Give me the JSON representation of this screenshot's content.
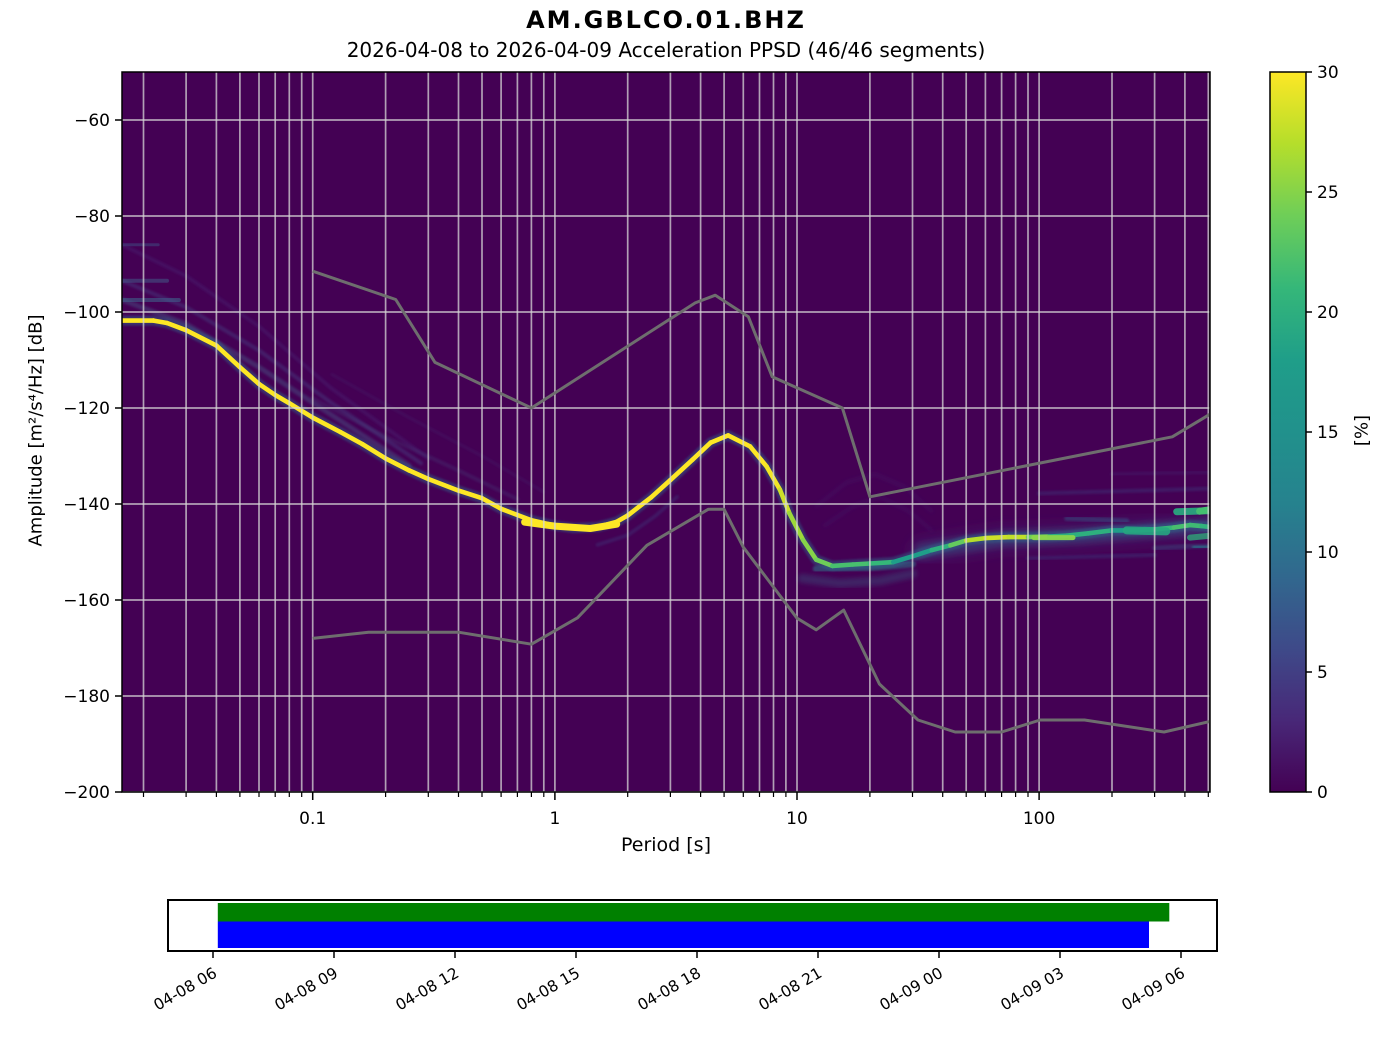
{
  "header": {
    "title": "AM.GBLCO.01.BHZ",
    "subtitle": "2026-04-08 to 2026-04-09  Acceleration PPSD (46/46 segments)"
  },
  "chart_data": {
    "type": "heatmap",
    "title": "AM.GBLCO.01.BHZ",
    "subtitle": "2026-04-08 to 2026-04-09  Acceleration PPSD (46/46 segments)",
    "xlabel": "Period [s]",
    "ylabel": "Amplitude [m²/s⁴/Hz] [dB]",
    "x_scale": "log",
    "xlim": [
      0.0163,
      508
    ],
    "ylim": [
      -200,
      -50
    ],
    "grid": true,
    "background_color": "#440154",
    "grid_color": "#d6d6d6",
    "noise_model_color": "#6e6e6e",
    "x_ticks": {
      "values": [
        0.1,
        1,
        10,
        100
      ],
      "labels": [
        "0.1",
        "1",
        "10",
        "100"
      ]
    },
    "y_ticks": {
      "values": [
        -60,
        -80,
        -100,
        -120,
        -140,
        -160,
        -180,
        -200
      ],
      "labels": [
        "−60",
        "−80",
        "−100",
        "−120",
        "−140",
        "−160",
        "−180",
        "−200"
      ]
    },
    "colorbar": {
      "label": "[%]",
      "clim": [
        0,
        30
      ],
      "colormap": "viridis",
      "tick_values": [
        0,
        5,
        10,
        15,
        20,
        25,
        30
      ],
      "tick_labels": [
        "0",
        "5",
        "10",
        "15",
        "20",
        "25",
        "30"
      ]
    },
    "mode_curve": [
      [
        0.0163,
        -101.8,
        30
      ],
      [
        0.022,
        -101.8,
        30
      ],
      [
        0.025,
        -102.3,
        30
      ],
      [
        0.03,
        -103.8,
        30
      ],
      [
        0.04,
        -107,
        30
      ],
      [
        0.05,
        -111.5,
        30
      ],
      [
        0.06,
        -115,
        30
      ],
      [
        0.07,
        -117.3,
        30
      ],
      [
        0.08,
        -119,
        30
      ],
      [
        0.1,
        -122,
        30
      ],
      [
        0.13,
        -125,
        30
      ],
      [
        0.16,
        -127.5,
        30
      ],
      [
        0.2,
        -130.5,
        30
      ],
      [
        0.25,
        -133,
        30
      ],
      [
        0.3,
        -134.8,
        30
      ],
      [
        0.4,
        -137.2,
        30
      ],
      [
        0.5,
        -138.8,
        30
      ],
      [
        0.6,
        -141,
        30
      ],
      [
        0.7,
        -142.3,
        30
      ],
      [
        0.8,
        -143.4,
        30
      ],
      [
        1.0,
        -144.5,
        30
      ],
      [
        1.2,
        -145,
        30
      ],
      [
        1.5,
        -144.8,
        30
      ],
      [
        1.8,
        -143.7,
        30
      ],
      [
        2.0,
        -142.4,
        30
      ],
      [
        2.5,
        -138.6,
        30
      ],
      [
        3.0,
        -135,
        30
      ],
      [
        3.7,
        -130.8,
        30
      ],
      [
        4.4,
        -127.2,
        30
      ],
      [
        5.2,
        -125.7,
        30
      ],
      [
        6.4,
        -128,
        30
      ],
      [
        7.5,
        -132.2,
        30
      ],
      [
        8.5,
        -137,
        29
      ],
      [
        9.3,
        -141.9,
        27
      ],
      [
        10.6,
        -147.5,
        25
      ],
      [
        12,
        -151.6,
        25
      ],
      [
        14,
        -152.9,
        23
      ],
      [
        17,
        -152.6,
        21
      ],
      [
        20,
        -152.4,
        23
      ],
      [
        25,
        -152.1,
        19
      ],
      [
        30,
        -150.9,
        17
      ],
      [
        36,
        -149.6,
        19
      ],
      [
        43,
        -148.6,
        21
      ],
      [
        50,
        -147.6,
        26
      ],
      [
        60,
        -147.1,
        28
      ],
      [
        75,
        -146.9,
        28
      ],
      [
        90,
        -146.9,
        27
      ],
      [
        110,
        -146.8,
        21
      ],
      [
        130,
        -146.6,
        19
      ],
      [
        160,
        -146.1,
        21
      ],
      [
        200,
        -145.5,
        19
      ],
      [
        250,
        -145.5,
        17
      ],
      [
        300,
        -145.3,
        20
      ],
      [
        360,
        -144.9,
        22
      ],
      [
        420,
        -144.4,
        22
      ],
      [
        470,
        -144.6,
        21
      ],
      [
        508,
        -144.8,
        20
      ]
    ],
    "noise_models": {
      "high": [
        [
          0.1,
          -91.5
        ],
        [
          0.22,
          -97.4
        ],
        [
          0.32,
          -110.5
        ],
        [
          0.8,
          -120.0
        ],
        [
          3.8,
          -98.1
        ],
        [
          4.6,
          -96.5
        ],
        [
          6.3,
          -101.0
        ],
        [
          7.9,
          -113.5
        ],
        [
          15.4,
          -120.0
        ],
        [
          20.0,
          -138.5
        ],
        [
          354.8,
          -126.0
        ],
        [
          508,
          -121.3
        ]
      ],
      "low": [
        [
          0.1,
          -168.0
        ],
        [
          0.17,
          -166.7
        ],
        [
          0.4,
          -166.7
        ],
        [
          0.8,
          -169.2
        ],
        [
          1.24,
          -163.7
        ],
        [
          2.4,
          -148.6
        ],
        [
          4.3,
          -141.1
        ],
        [
          5.0,
          -141.1
        ],
        [
          6.0,
          -149.0
        ],
        [
          10.0,
          -163.8
        ],
        [
          12.0,
          -166.2
        ],
        [
          15.6,
          -162.1
        ],
        [
          21.9,
          -177.5
        ],
        [
          31.6,
          -185.0
        ],
        [
          45.0,
          -187.5
        ],
        [
          70.0,
          -187.5
        ],
        [
          101.0,
          -185.0
        ],
        [
          154.0,
          -185.0
        ],
        [
          328.0,
          -187.5
        ],
        [
          508,
          -185.3
        ]
      ]
    },
    "spread_under": [
      {
        "pts": [
          [
            0.0163,
            -86
          ],
          [
            0.023,
            -86
          ]
        ],
        "w": 3,
        "c": "#3d5a8a",
        "o": 0.45,
        "blur": 0
      },
      {
        "pts": [
          [
            0.0163,
            -93.5
          ],
          [
            0.025,
            -93.5
          ]
        ],
        "w": 4,
        "c": "#41628c",
        "o": 0.5,
        "blur": 0
      },
      {
        "pts": [
          [
            0.0163,
            -97.5
          ],
          [
            0.028,
            -97.5
          ]
        ],
        "w": 4,
        "c": "#3f6a8e",
        "o": 0.55,
        "blur": 0
      },
      {
        "pts": [
          [
            0.0163,
            -86
          ],
          [
            0.03,
            -92.5
          ],
          [
            0.06,
            -103
          ],
          [
            0.12,
            -116
          ],
          [
            0.3,
            -130.5
          ]
        ],
        "w": 4,
        "c": "#46337e",
        "o": 0.3,
        "blur": 1
      },
      {
        "pts": [
          [
            0.0163,
            -93.5
          ],
          [
            0.03,
            -99
          ],
          [
            0.06,
            -108
          ],
          [
            0.12,
            -119
          ],
          [
            0.28,
            -131.5
          ]
        ],
        "w": 4,
        "c": "#445a93",
        "o": 0.32,
        "blur": 1
      },
      {
        "pts": [
          [
            0.0163,
            -97.5
          ],
          [
            0.03,
            -102.5
          ],
          [
            0.06,
            -111.5
          ],
          [
            0.12,
            -121.5
          ],
          [
            0.25,
            -132
          ]
        ],
        "w": 5,
        "c": "#44618f",
        "o": 0.38,
        "blur": 1
      },
      {
        "pts": [
          [
            0.1,
            -118
          ],
          [
            0.2,
            -126
          ],
          [
            0.4,
            -133
          ],
          [
            0.7,
            -139
          ]
        ],
        "w": 4,
        "c": "#46427e",
        "o": 0.28,
        "blur": 1
      },
      {
        "pts": [
          [
            0.12,
            -113
          ],
          [
            0.25,
            -122
          ],
          [
            0.5,
            -130
          ],
          [
            0.9,
            -137.5
          ]
        ],
        "w": 3,
        "c": "#46337e",
        "o": 0.2,
        "blur": 1
      },
      {
        "pts": [
          [
            1.5,
            -148.5
          ],
          [
            2,
            -146.5
          ],
          [
            2.6,
            -142.5
          ],
          [
            3.2,
            -138.5
          ]
        ],
        "w": 3.5,
        "c": "#3c4d8a",
        "o": 0.3,
        "blur": 1
      },
      {
        "pts": [
          [
            10.5,
            -155.5
          ],
          [
            15,
            -156.5
          ],
          [
            22,
            -156
          ],
          [
            30,
            -154.5
          ]
        ],
        "w": 9,
        "c": "#34527e",
        "o": 0.4,
        "blur": 2
      },
      {
        "pts": [
          [
            12,
            -140.5
          ],
          [
            16,
            -135.5
          ],
          [
            21,
            -133.8
          ],
          [
            28,
            -136.5
          ],
          [
            36,
            -141.5
          ]
        ],
        "w": 3,
        "c": "#46337e",
        "o": 0.22,
        "blur": 2
      },
      {
        "pts": [
          [
            13,
            -144.5
          ],
          [
            17,
            -140.5
          ],
          [
            22,
            -138.5
          ],
          [
            29,
            -141.5
          ],
          [
            36,
            -145.5
          ]
        ],
        "w": 3,
        "c": "#46337e",
        "o": 0.22,
        "blur": 2
      },
      {
        "pts": [
          [
            12,
            -153.5
          ],
          [
            20,
            -153.3
          ],
          [
            30,
            -152.5
          ]
        ],
        "w": 7,
        "c": "#277f8e",
        "o": 0.5,
        "blur": 1
      },
      {
        "pts": [
          [
            33,
            -149.8
          ],
          [
            70,
            -147.3
          ],
          [
            150,
            -146.6
          ],
          [
            300,
            -145.4
          ],
          [
            508,
            -144.6
          ]
        ],
        "w": 30,
        "c": "#443983",
        "o": 0.18,
        "blur": 5
      },
      {
        "pts": [
          [
            33,
            -149.8
          ],
          [
            70,
            -147.3
          ],
          [
            150,
            -146.6
          ],
          [
            300,
            -145.4
          ],
          [
            508,
            -144.6
          ]
        ],
        "w": 16,
        "c": "#31688e",
        "o": 0.38,
        "blur": 3
      },
      {
        "pts": [
          [
            100,
            -137.8
          ],
          [
            508,
            -136.8
          ]
        ],
        "w": 4,
        "c": "#3b518b",
        "o": 0.3,
        "blur": 1
      },
      {
        "pts": [
          [
            200,
            -133.8
          ],
          [
            508,
            -133.4
          ]
        ],
        "w": 4,
        "c": "#46327e",
        "o": 0.22,
        "blur": 1
      },
      {
        "pts": [
          [
            90,
            -151.3
          ],
          [
            300,
            -150.6
          ]
        ],
        "w": 4,
        "c": "#3b518b",
        "o": 0.3,
        "blur": 1
      },
      {
        "pts": [
          [
            300,
            -149.2
          ],
          [
            508,
            -148.6
          ]
        ],
        "w": 5,
        "c": "#33638d",
        "o": 0.35,
        "blur": 1
      },
      {
        "pts": [
          [
            130,
            -143
          ],
          [
            230,
            -143.5
          ]
        ],
        "w": 5,
        "c": "#2d6a8e",
        "o": 0.4,
        "blur": 1
      }
    ],
    "spread_over": [
      {
        "pts": [
          [
            0.75,
            -143.8
          ],
          [
            1.0,
            -144.6
          ],
          [
            1.4,
            -145.1
          ],
          [
            1.8,
            -144.2
          ]
        ],
        "w": 7,
        "c": "#fde725",
        "o": 1,
        "blur": 0
      },
      {
        "pts": [
          [
            370,
            -141.6
          ],
          [
            508,
            -141.4
          ]
        ],
        "w": 7,
        "c": "#2aa77e",
        "o": 0.95,
        "blur": 0
      },
      {
        "pts": [
          [
            460,
            -141.5
          ],
          [
            508,
            -141.2
          ]
        ],
        "w": 7,
        "c": "#44bf70",
        "o": 1,
        "blur": 0
      },
      {
        "pts": [
          [
            230,
            -145.5
          ],
          [
            335,
            -145.7
          ]
        ],
        "w": 8,
        "c": "#27a57f",
        "o": 0.9,
        "blur": 0
      },
      {
        "pts": [
          [
            95,
            -147
          ],
          [
            138,
            -147
          ]
        ],
        "w": 5,
        "c": "#8bd64a",
        "o": 0.95,
        "blur": 0
      },
      {
        "pts": [
          [
            420,
            -147
          ],
          [
            508,
            -146.6
          ]
        ],
        "w": 6,
        "c": "#2f9e77",
        "o": 0.85,
        "blur": 0
      },
      {
        "pts": [
          [
            480,
            -143.6
          ],
          [
            508,
            -143.6
          ]
        ],
        "w": 11,
        "c": "#21918c",
        "o": 0.6,
        "blur": 1
      },
      {
        "pts": [
          [
            440,
            -149
          ],
          [
            508,
            -148.8
          ]
        ],
        "w": 6,
        "c": "#2a788e",
        "o": 0.6,
        "blur": 1
      }
    ]
  },
  "coverage": {
    "tick_labels": [
      "04-08 06",
      "04-08 09",
      "04-08 12",
      "04-08 15",
      "04-08 18",
      "04-08 21",
      "04-09 00",
      "04-09 03",
      "04-09 06"
    ],
    "bars": [
      {
        "row": 0,
        "color": "#008000",
        "start": 0.005,
        "end": 0.988
      },
      {
        "row": 1,
        "color": "#0000ff",
        "start": 0.005,
        "end": 0.967
      }
    ]
  }
}
